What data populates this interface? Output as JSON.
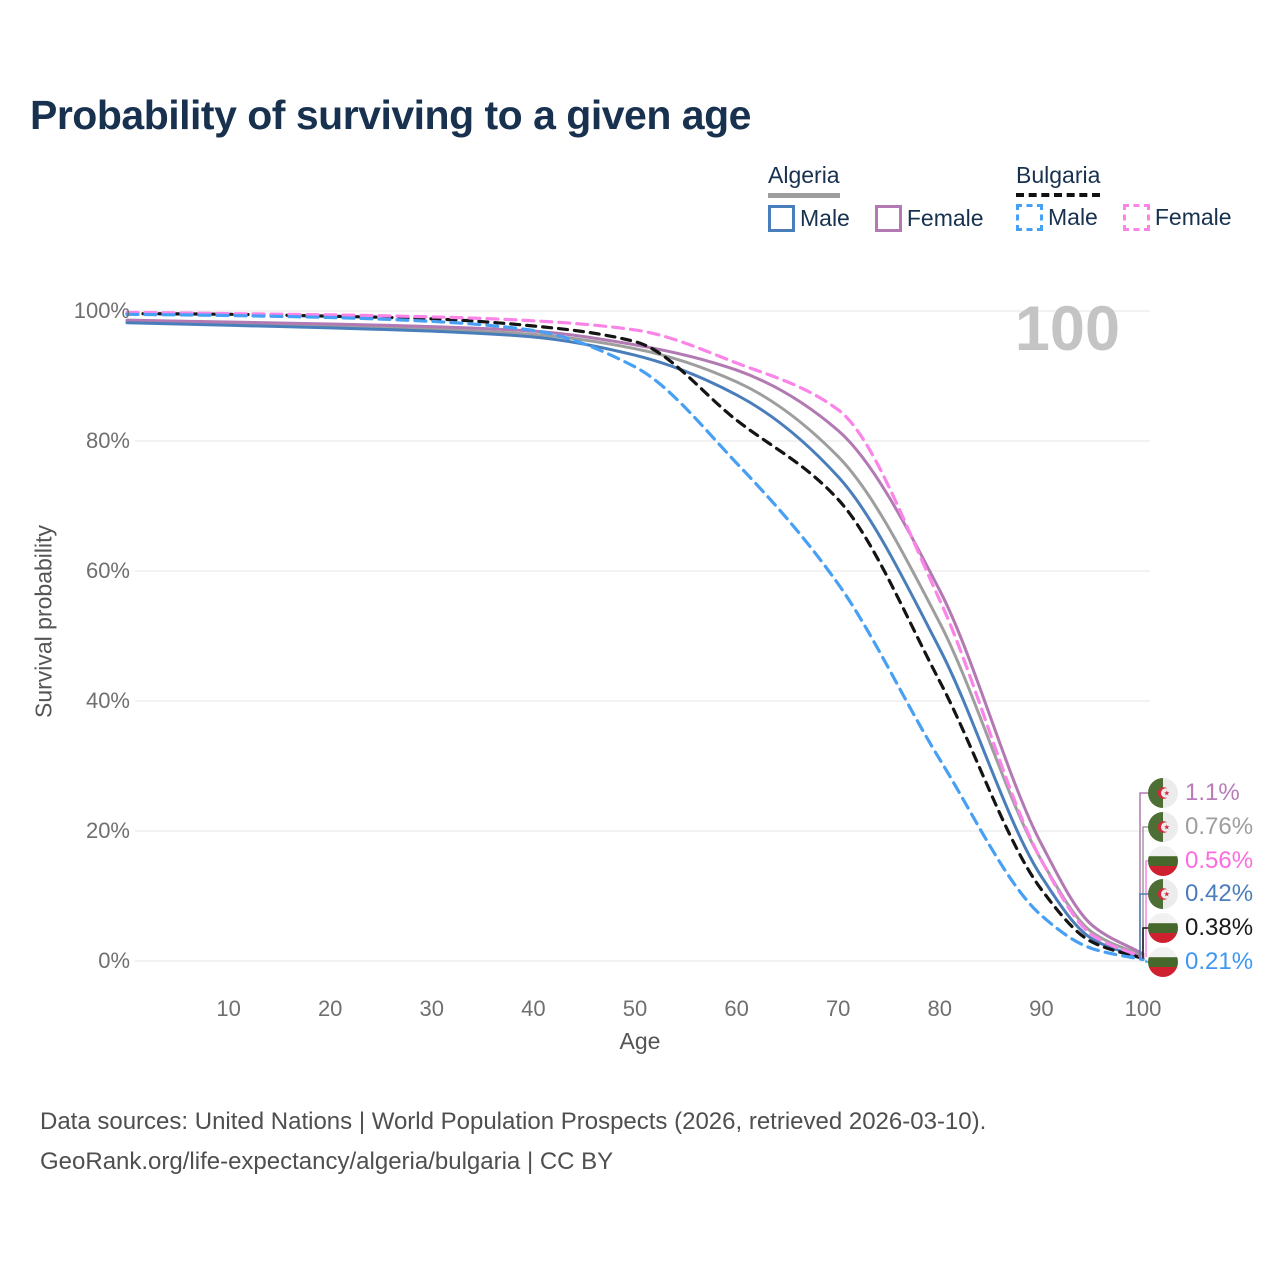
{
  "title": "Probability of surviving to a given age",
  "watermark": "100",
  "legend": {
    "groups": [
      {
        "label": "Algeria",
        "underline_style": "solid",
        "underline_color": "#9e9e9e",
        "items": [
          {
            "label": "Male",
            "swatch_style": "solid",
            "color": "#4a7ebb"
          },
          {
            "label": "Female",
            "swatch_style": "solid",
            "color": "#b279b2"
          }
        ]
      },
      {
        "label": "Bulgaria",
        "underline_style": "dashed",
        "underline_color": "#111111",
        "items": [
          {
            "label": "Male",
            "swatch_style": "dashed",
            "color": "#47a0f4"
          },
          {
            "label": "Female",
            "swatch_style": "dashed",
            "color": "#fb84e8"
          }
        ]
      }
    ]
  },
  "chart_data": {
    "type": "line",
    "title": "Probability of surviving to a given age",
    "xlabel": "Age",
    "ylabel": "Survival probability",
    "xlim": [
      0,
      100
    ],
    "ylim": [
      0,
      100
    ],
    "grid": "horizontal",
    "legend_position": "top-right",
    "x_ticks": [
      10,
      20,
      30,
      40,
      50,
      60,
      70,
      80,
      90,
      100
    ],
    "y_ticks": [
      {
        "value": 100,
        "label": "100%"
      },
      {
        "value": 80,
        "label": "80%"
      },
      {
        "value": 60,
        "label": "60%"
      },
      {
        "value": 40,
        "label": "40%"
      },
      {
        "value": 20,
        "label": "20%"
      },
      {
        "value": 0,
        "label": "0%"
      }
    ],
    "x": [
      0,
      10,
      20,
      30,
      40,
      50,
      60,
      70,
      80,
      90,
      95,
      100
    ],
    "series": [
      {
        "name": "Algeria",
        "country": "Algeria",
        "sex": "Both",
        "style": "solid",
        "color": "#9e9e9e",
        "values": [
          98.4,
          98.1,
          97.7,
          97.2,
          96.4,
          94.2,
          89.1,
          77.6,
          52.0,
          15.5,
          4.4,
          0.76
        ],
        "end_label": "0.76%"
      },
      {
        "name": "Algeria Female",
        "country": "Algeria",
        "sex": "Female",
        "style": "solid",
        "color": "#b279b2",
        "values": [
          98.6,
          98.3,
          98.0,
          97.6,
          96.9,
          94.8,
          90.9,
          81.6,
          57.0,
          18.0,
          5.5,
          1.1
        ],
        "end_label": "1.1%"
      },
      {
        "name": "Algeria Male",
        "country": "Algeria",
        "sex": "Male",
        "style": "solid",
        "color": "#4a7ebb",
        "values": [
          98.2,
          97.8,
          97.4,
          96.9,
          96.0,
          93.2,
          87.1,
          74.5,
          48.0,
          13.0,
          3.4,
          0.42
        ],
        "end_label": "0.42%"
      },
      {
        "name": "Bulgaria",
        "country": "Bulgaria",
        "sex": "Both",
        "style": "dashed",
        "color": "#141414",
        "values": [
          99.6,
          99.5,
          99.2,
          98.8,
          97.7,
          95.3,
          83.2,
          71.0,
          43.0,
          11.0,
          2.9,
          0.38
        ],
        "end_label": "0.38%"
      },
      {
        "name": "Bulgaria Female",
        "country": "Bulgaria",
        "sex": "Female",
        "style": "dashed",
        "color": "#fb84e8",
        "values": [
          99.8,
          99.6,
          99.4,
          99.1,
          98.5,
          97.1,
          92.0,
          84.8,
          55.5,
          15.5,
          4.0,
          0.56
        ],
        "end_label": "0.56%"
      },
      {
        "name": "Bulgaria Male",
        "country": "Bulgaria",
        "sex": "Male",
        "style": "dashed",
        "color": "#47a0f4",
        "values": [
          99.5,
          99.3,
          99.0,
          98.4,
          97.0,
          91.4,
          76.6,
          58.0,
          31.0,
          7.0,
          1.9,
          0.21
        ],
        "end_label": "0.21%"
      }
    ]
  },
  "end_labels": [
    {
      "value": "1.1%",
      "flag": "algeria",
      "series": "Algeria Female",
      "color": "#b87db8"
    },
    {
      "value": "0.76%",
      "flag": "algeria",
      "series": "Algeria",
      "color": "#9e9e9e"
    },
    {
      "value": "0.56%",
      "flag": "bulgaria",
      "series": "Bulgaria Female",
      "color": "#fb6ce0"
    },
    {
      "value": "0.42%",
      "flag": "algeria",
      "series": "Algeria Male",
      "color": "#4a7ebb"
    },
    {
      "value": "0.38%",
      "flag": "bulgaria",
      "series": "Bulgaria",
      "color": "#1a1a1a"
    },
    {
      "value": "0.21%",
      "flag": "bulgaria",
      "series": "Bulgaria Male",
      "color": "#3e97f2"
    }
  ],
  "footer": {
    "line1": "Data sources: United Nations | World Population Prospects (2026, retrieved 2026-03-10).",
    "line2": "GeoRank.org/life-expectancy/algeria/bulgaria | CC BY"
  }
}
